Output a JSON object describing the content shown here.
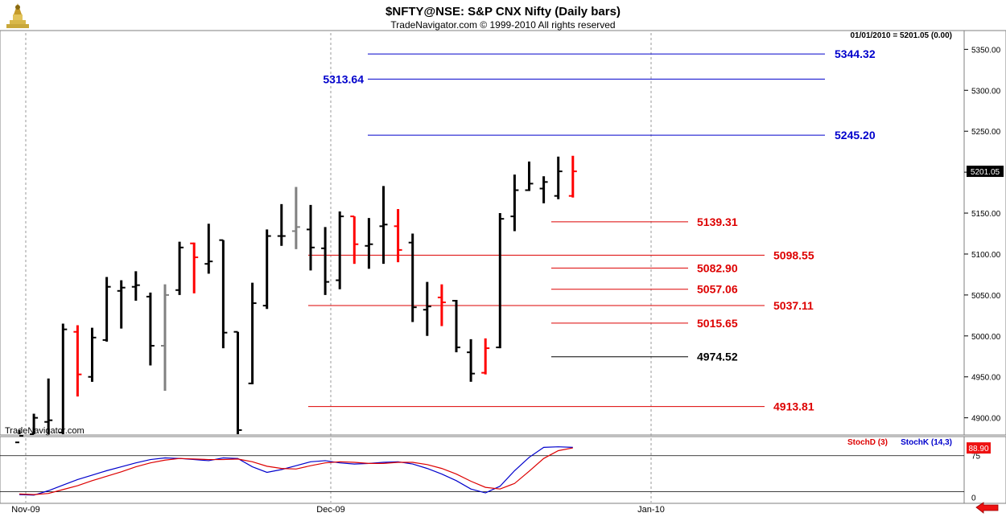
{
  "header": {
    "title": "$NFTY@NSE:  S&P CNX Nifty  (Daily bars)",
    "subtitle": "TradeNavigator.com © 1999-2010 All rights reserved",
    "quote": "01/01/2010 = 5201.05 (0.00)",
    "watermark": "TradeNavigator.com"
  },
  "chart_data": [
    {
      "type": "ohlc",
      "title": "$NFTY@NSE:  S&P CNX Nifty  (Daily bars)",
      "ylim": [
        4880,
        5370
      ],
      "y_ticks": [
        4900,
        4950,
        5000,
        5050,
        5100,
        5150,
        5200,
        5250,
        5300,
        5350
      ],
      "y_tick_labels": [
        "4900.00",
        "4950.00",
        "5000.00",
        "5050.00",
        "5100.00",
        "5150.00",
        "5200.00",
        "5250.00",
        "5300.00",
        "5350.00"
      ],
      "x_labels": [
        "Nov-09",
        "Dec-09",
        "Jan-10"
      ],
      "last_price_label": "5201.05",
      "colors": {
        "up": "#000000",
        "down": "#ff0000",
        "neutral": "#808080",
        "blue": "#0000cc",
        "red": "#dd0000"
      },
      "bars": [
        {
          "o": 4870,
          "h": 4885,
          "l": 4830,
          "c": 4878,
          "color": "black"
        },
        {
          "o": 4880,
          "h": 4905,
          "l": 4860,
          "c": 4900,
          "color": "black"
        },
        {
          "o": 4895,
          "h": 4948,
          "l": 4870,
          "c": 4897,
          "color": "black"
        },
        {
          "o": 4882,
          "h": 5015,
          "l": 4870,
          "c": 5008,
          "color": "black"
        },
        {
          "o": 5005,
          "h": 5013,
          "l": 4926,
          "c": 4953,
          "color": "red"
        },
        {
          "o": 4950,
          "h": 5010,
          "l": 4944,
          "c": 4998,
          "color": "black"
        },
        {
          "o": 4995,
          "h": 5072,
          "l": 4993,
          "c": 5060,
          "color": "black"
        },
        {
          "o": 5055,
          "h": 5068,
          "l": 5009,
          "c": 5059,
          "color": "black"
        },
        {
          "o": 5060,
          "h": 5079,
          "l": 5043,
          "c": 5062,
          "color": "black"
        },
        {
          "o": 5048,
          "h": 5053,
          "l": 4964,
          "c": 4988,
          "color": "black"
        },
        {
          "o": 4988,
          "h": 5063,
          "l": 4933,
          "c": 5050,
          "color": "gray"
        },
        {
          "o": 5056,
          "h": 5115,
          "l": 5050,
          "c": 5108,
          "color": "black"
        },
        {
          "o": 5113,
          "h": 5114,
          "l": 5052,
          "c": 5096,
          "color": "red"
        },
        {
          "o": 5088,
          "h": 5137,
          "l": 5076,
          "c": 5091,
          "color": "black"
        },
        {
          "o": 5117,
          "h": 5117,
          "l": 4985,
          "c": 5004,
          "color": "black"
        },
        {
          "o": 5005,
          "h": 5005,
          "l": 4880,
          "c": 4885,
          "color": "black"
        },
        {
          "o": 4942,
          "h": 5065,
          "l": 4941,
          "c": 5040,
          "color": "black"
        },
        {
          "o": 5037,
          "h": 5130,
          "l": 5033,
          "c": 5122,
          "color": "black"
        },
        {
          "o": 5122,
          "h": 5161,
          "l": 5110,
          "c": 5122,
          "color": "black"
        },
        {
          "o": 5128,
          "h": 5182,
          "l": 5106,
          "c": 5133,
          "color": "gray"
        },
        {
          "o": 5130,
          "h": 5160,
          "l": 5080,
          "c": 5108,
          "color": "black"
        },
        {
          "o": 5107,
          "h": 5133,
          "l": 5050,
          "c": 5066,
          "color": "black"
        },
        {
          "o": 5068,
          "h": 5152,
          "l": 5057,
          "c": 5146,
          "color": "black"
        },
        {
          "o": 5146,
          "h": 5146,
          "l": 5088,
          "c": 5112,
          "color": "red"
        },
        {
          "o": 5110,
          "h": 5144,
          "l": 5082,
          "c": 5112,
          "color": "black"
        },
        {
          "o": 5134,
          "h": 5183,
          "l": 5088,
          "c": 5136,
          "color": "black"
        },
        {
          "o": 5134,
          "h": 5155,
          "l": 5090,
          "c": 5105,
          "color": "red"
        },
        {
          "o": 5114,
          "h": 5125,
          "l": 5017,
          "c": 5035,
          "color": "black"
        },
        {
          "o": 5032,
          "h": 5066,
          "l": 5000,
          "c": 5036,
          "color": "black"
        },
        {
          "o": 5047,
          "h": 5063,
          "l": 5012,
          "c": 5041,
          "color": "red"
        },
        {
          "o": 5043,
          "h": 5044,
          "l": 4980,
          "c": 4986,
          "color": "black"
        },
        {
          "o": 4980,
          "h": 4996,
          "l": 4944,
          "c": 4954,
          "color": "black"
        },
        {
          "o": 4955,
          "h": 4997,
          "l": 4953,
          "c": 4985,
          "color": "red"
        },
        {
          "o": 4986,
          "h": 5150,
          "l": 4985,
          "c": 5143,
          "color": "black"
        },
        {
          "o": 5146,
          "h": 5197,
          "l": 5128,
          "c": 5178,
          "color": "black"
        },
        {
          "o": 5178,
          "h": 5213,
          "l": 5177,
          "c": 5186,
          "color": "black"
        },
        {
          "o": 5180,
          "h": 5195,
          "l": 5162,
          "c": 5188,
          "color": "black"
        },
        {
          "o": 5171,
          "h": 5219,
          "l": 5167,
          "c": 5201,
          "color": "black"
        },
        {
          "o": 5171,
          "h": 5220,
          "l": 5169,
          "c": 5201,
          "color": "red"
        }
      ],
      "levels": [
        {
          "value": 5344.32,
          "label": "5344.32",
          "color": "blue",
          "label_side": "right"
        },
        {
          "value": 5313.64,
          "label": "5313.64",
          "color": "blue",
          "label_side": "left"
        },
        {
          "value": 5245.2,
          "label": "5245.20",
          "color": "blue",
          "label_side": "right"
        },
        {
          "value": 5139.31,
          "label": "5139.31",
          "color": "red",
          "label_side": "right"
        },
        {
          "value": 5098.55,
          "label": "5098.55",
          "color": "red",
          "label_side": "right"
        },
        {
          "value": 5082.9,
          "label": "5082.90",
          "color": "red",
          "label_side": "right"
        },
        {
          "value": 5057.06,
          "label": "5057.06",
          "color": "red",
          "label_side": "right"
        },
        {
          "value": 5037.11,
          "label": "5037.11",
          "color": "red",
          "label_side": "right"
        },
        {
          "value": 5015.65,
          "label": "5015.65",
          "color": "red",
          "label_side": "right"
        },
        {
          "value": 4974.52,
          "label": "4974.52",
          "color": "black",
          "label_side": "right"
        },
        {
          "value": 4913.81,
          "label": "4913.81",
          "color": "red",
          "label_side": "right"
        }
      ]
    },
    {
      "type": "line",
      "legend": [
        "StochD (3)",
        "StochK (14,3)"
      ],
      "ylim": [
        -5,
        105
      ],
      "y_ticks": [
        0,
        75
      ],
      "reference_lines": [
        75,
        10
      ],
      "last_value_label": "88.90",
      "series": [
        {
          "name": "StochK (14,3)",
          "color": "#0000cc",
          "values": [
            5,
            4,
            12,
            22,
            32,
            40,
            48,
            55,
            62,
            68,
            71,
            70,
            68,
            66,
            71,
            70,
            55,
            45,
            50,
            57,
            64,
            66,
            62,
            60,
            61,
            63,
            64,
            60,
            52,
            42,
            30,
            15,
            8,
            20,
            48,
            72,
            90,
            91,
            90
          ]
        },
        {
          "name": "StochD (3)",
          "color": "#dd0000",
          "values": [
            6,
            5,
            7,
            14,
            21,
            30,
            38,
            46,
            55,
            62,
            67,
            70,
            69,
            68,
            68,
            69,
            64,
            56,
            52,
            51,
            57,
            62,
            64,
            63,
            61,
            61,
            63,
            63,
            59,
            52,
            42,
            29,
            18,
            15,
            25,
            47,
            70,
            84,
            89
          ]
        }
      ]
    }
  ]
}
